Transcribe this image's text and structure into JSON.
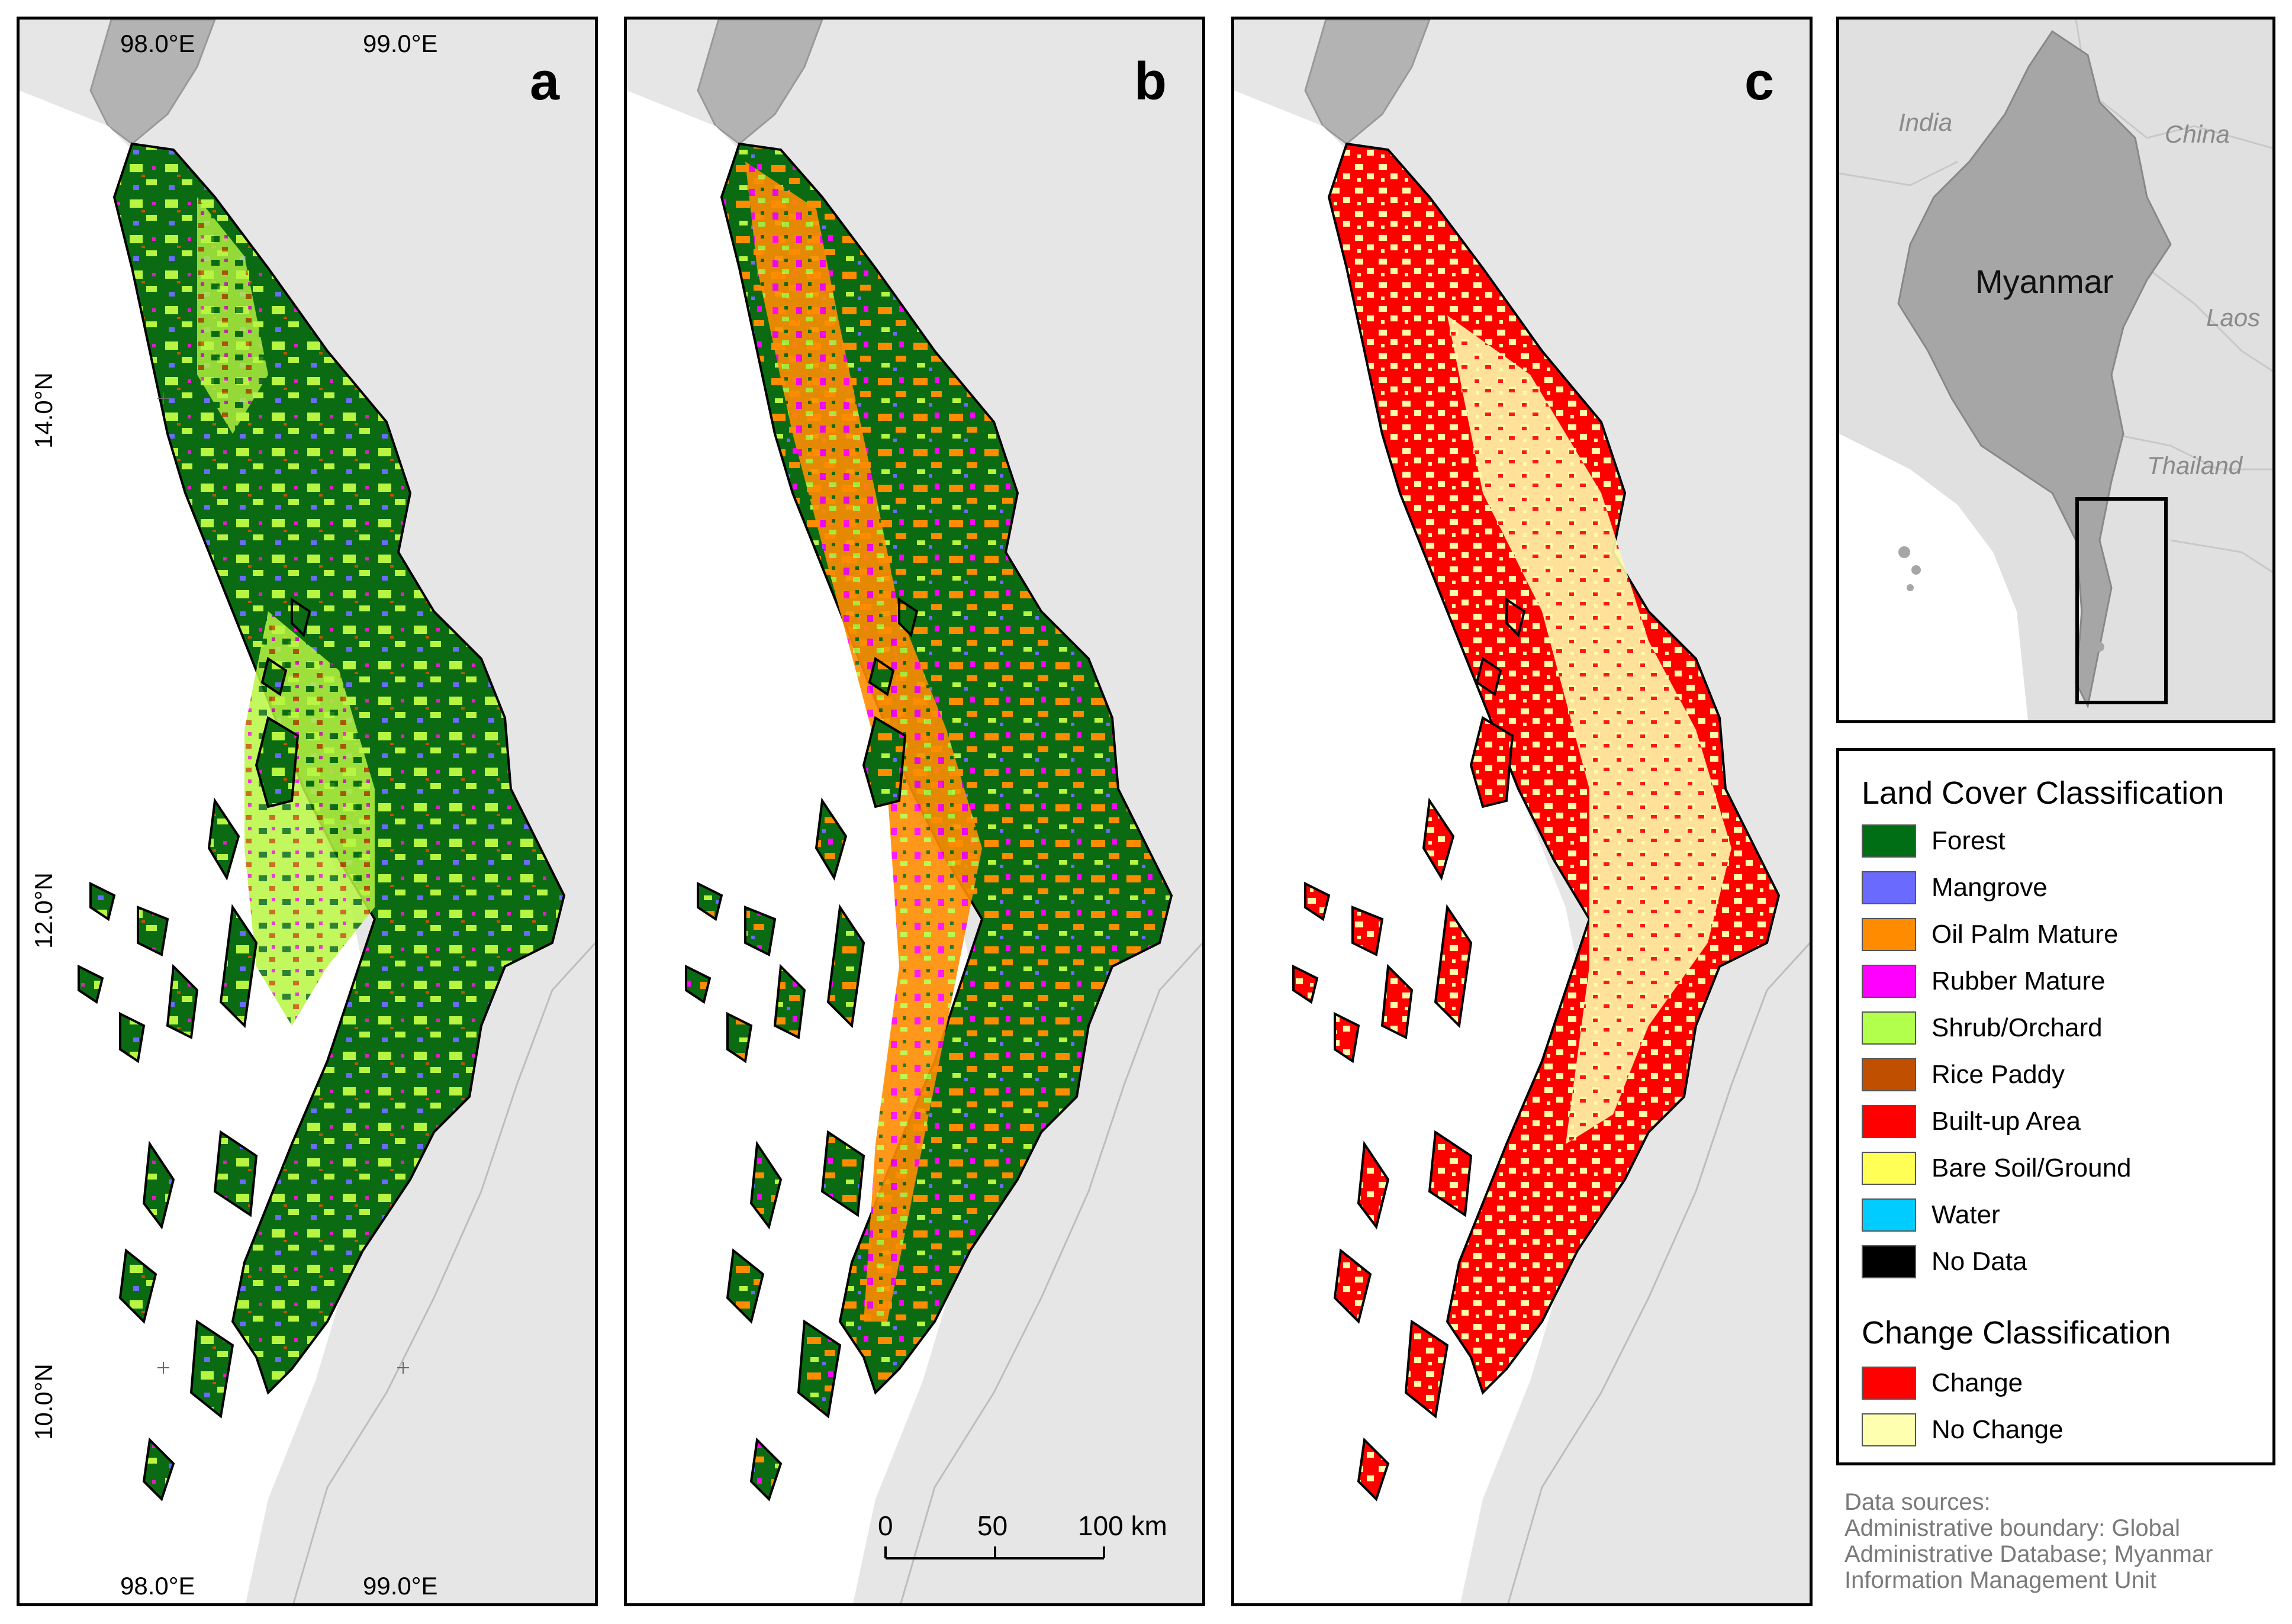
{
  "panels": [
    {
      "id": "a",
      "letter": "a",
      "map_colors": [
        "#0a6b12",
        "#b7f542",
        "#6b6bff",
        "#e01ec8",
        "#c25400"
      ]
    },
    {
      "id": "b",
      "letter": "b",
      "map_colors": [
        "#0a6b12",
        "#ff8c00",
        "#ff00ff",
        "#b7f542",
        "#6b6bff"
      ]
    },
    {
      "id": "c",
      "letter": "c",
      "map_colors": [
        "#ff0000",
        "#fffaaa"
      ]
    }
  ],
  "coords": {
    "lon_98": "98.0°E",
    "lon_99": "99.0°E",
    "lat_14": "14.0°N",
    "lat_12": "12.0°N",
    "lat_10": "10.0°N"
  },
  "scale_bar": {
    "labels": [
      "0",
      "50",
      "100 km"
    ]
  },
  "inset": {
    "countries": [
      "India",
      "China",
      "Laos",
      "Thailand"
    ],
    "highlight": "Myanmar"
  },
  "legend": {
    "land_cover_title": "Land Cover Classification",
    "land_cover_items": [
      {
        "label": "Forest",
        "color": "#006e14"
      },
      {
        "label": "Mangrove",
        "color": "#6a6aff"
      },
      {
        "label": "Oil Palm Mature",
        "color": "#ff8c00"
      },
      {
        "label": "Rubber Mature",
        "color": "#ff00ff"
      },
      {
        "label": "Shrub/Orchard",
        "color": "#b2ff4c"
      },
      {
        "label": "Rice Paddy",
        "color": "#c05000"
      },
      {
        "label": "Built-up Area",
        "color": "#ff0000"
      },
      {
        "label": "Bare Soil/Ground",
        "color": "#ffff55"
      },
      {
        "label": "Water",
        "color": "#00ccff"
      },
      {
        "label": "No Data",
        "color": "#000000"
      }
    ],
    "change_title": "Change Classification",
    "change_items": [
      {
        "label": "Change",
        "color": "#ff0000"
      },
      {
        "label": "No Change",
        "color": "#ffffb0"
      }
    ]
  },
  "data_sources": "Data sources:\nAdministrative boundary: Global Administrative Database; Myanmar Information Management Unit"
}
